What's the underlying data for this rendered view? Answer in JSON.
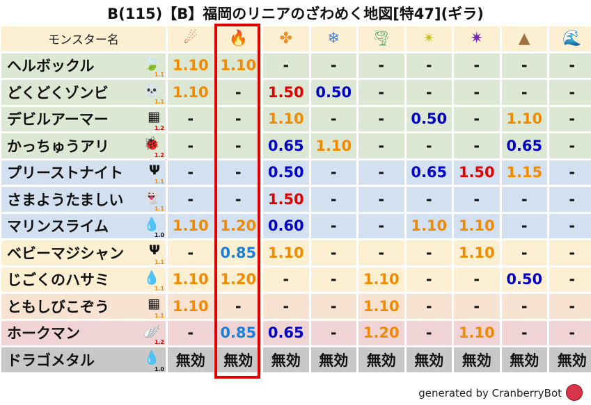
{
  "title": "B(115)【B】福岡のリニアのざわめく地図[特47](ギラ)",
  "header": {
    "name_label": "モンスター名",
    "elements": [
      {
        "icon": "fire-ball-icon",
        "glyph": "☄",
        "color": "#d9442a"
      },
      {
        "icon": "flame-icon",
        "glyph": "🔥",
        "color": "#e85a1a"
      },
      {
        "icon": "explosion-icon",
        "glyph": "✤",
        "color": "#e8912a"
      },
      {
        "icon": "ice-icon",
        "glyph": "❄",
        "color": "#4a86e0"
      },
      {
        "icon": "wind-icon",
        "glyph": "🌪",
        "color": "#5aa870"
      },
      {
        "icon": "light-icon",
        "glyph": "✴",
        "color": "#c9c020"
      },
      {
        "icon": "dark-icon",
        "glyph": "✷",
        "color": "#7a2ab0"
      },
      {
        "icon": "earth-icon",
        "glyph": "▲",
        "color": "#a07040"
      },
      {
        "icon": "water-wave-icon",
        "glyph": "🌊",
        "color": "#2060d0"
      }
    ]
  },
  "highlight_column": 2,
  "colors": {
    "orange": "#f28a00",
    "red": "#e00000",
    "blue": "#0000cc",
    "lightblue": "#1a7fd9"
  },
  "rows": [
    {
      "name": "ヘルボックル",
      "icon": "leaf-icon",
      "glyph": "🍃",
      "mult": "1.1",
      "bg": "#dde8d4",
      "values": [
        "1.10",
        "1.10",
        "-",
        "-",
        "-",
        "-",
        "-",
        "-",
        "-"
      ]
    },
    {
      "name": "どくどくゾンビ",
      "icon": "skull-icon",
      "glyph": "💀",
      "mult": "1.1",
      "bg": "#dde8d4",
      "values": [
        "1.10",
        "-",
        "1.50",
        "0.50",
        "-",
        "-",
        "-",
        "-",
        "-"
      ]
    },
    {
      "name": "デビルアーマー",
      "icon": "brick-icon",
      "glyph": "▦",
      "mult": "1.2",
      "bg": "#dde8d4",
      "values": [
        "-",
        "-",
        "1.10",
        "-",
        "-",
        "0.50",
        "-",
        "1.10",
        "-"
      ]
    },
    {
      "name": "かっちゅうアリ",
      "icon": "bug-icon",
      "glyph": "🐞",
      "mult": "1.2",
      "bg": "#dde8d4",
      "values": [
        "-",
        "-",
        "0.65",
        "1.10",
        "-",
        "-",
        "-",
        "0.65",
        "-"
      ]
    },
    {
      "name": "プリーストナイト",
      "icon": "trident-icon",
      "glyph": "Ψ",
      "mult": "1.1",
      "bg": "#d3e0ef",
      "values": [
        "-",
        "-",
        "0.50",
        "-",
        "-",
        "0.65",
        "1.50",
        "1.15",
        "-"
      ]
    },
    {
      "name": "さまようたましい",
      "icon": "ghost-icon",
      "glyph": "👻",
      "mult": "1.1",
      "bg": "#d3e0ef",
      "values": [
        "-",
        "-",
        "1.50",
        "-",
        "-",
        "-",
        "-",
        "-",
        "-"
      ]
    },
    {
      "name": "マリンスライム",
      "icon": "water-drop-icon",
      "glyph": "💧",
      "mult": "1.0",
      "bg": "#d3e0ef",
      "values": [
        "1.10",
        "1.20",
        "0.60",
        "-",
        "-",
        "1.10",
        "1.10",
        "-",
        "-"
      ]
    },
    {
      "name": "ベビーマジシャン",
      "icon": "trident-icon",
      "glyph": "Ψ",
      "mult": "1.1",
      "bg": "#fdf0d2",
      "values": [
        "-",
        "0.85",
        "1.10",
        "-",
        "-",
        "-",
        "1.10",
        "-",
        "-"
      ]
    },
    {
      "name": "じごくのハサミ",
      "icon": "water-drop-icon",
      "glyph": "💧",
      "mult": "1.1",
      "bg": "#fdf0d2",
      "values": [
        "1.10",
        "1.20",
        "-",
        "-",
        "1.10",
        "-",
        "-",
        "0.50",
        "-"
      ]
    },
    {
      "name": "ともしびこぞう",
      "icon": "brick-icon",
      "glyph": "▦",
      "mult": "1.1",
      "bg": "#f8e3d3",
      "values": [
        "1.10",
        "-",
        "-",
        "-",
        "1.10",
        "-",
        "-",
        "-",
        "-"
      ]
    },
    {
      "name": "ホークマン",
      "icon": "wing-icon",
      "glyph": "🪽",
      "mult": "1.2",
      "bg": "#f0d3d5",
      "values": [
        "-",
        "0.85",
        "0.65",
        "-",
        "1.20",
        "-",
        "1.10",
        "-",
        "-"
      ]
    },
    {
      "name": "ドラゴメタル",
      "icon": "slime-icon",
      "glyph": "💧",
      "mult": "1.0",
      "bg": "#c8c8c8",
      "values": [
        "無効",
        "無効",
        "無効",
        "無効",
        "無効",
        "無効",
        "無効",
        "無効",
        "無効"
      ]
    }
  ],
  "footer": "generated by CranberryBot"
}
